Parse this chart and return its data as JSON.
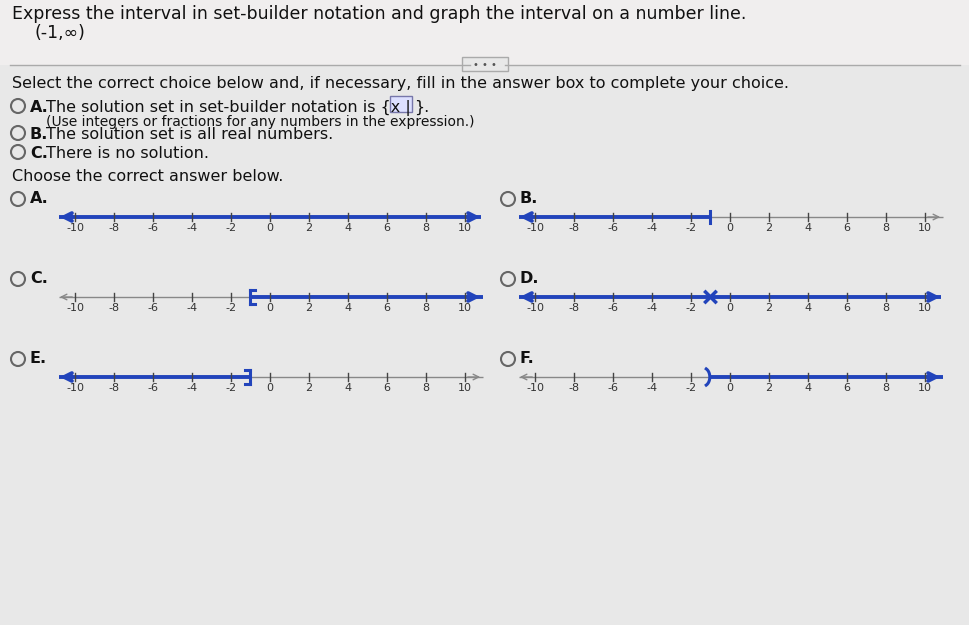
{
  "title_line1": "Express the interval in set-builder notation and graph the interval on a number line.",
  "title_line2": "(-1,∞)",
  "bg_color": "#e8e8e8",
  "white_bg": "#f0f0f0",
  "text_color": "#111111",
  "blue_color": "#2244bb",
  "gray_line": "#888888",
  "select_text": "Select the correct choice below and, if necessary, fill in the answer box to complete your choice.",
  "optA_subtext": "(Use integers or fractions for any numbers in the expression.)",
  "choose_text": "Choose the correct answer below.",
  "number_line_ticks": [
    -10,
    -8,
    -6,
    -4,
    -2,
    0,
    2,
    4,
    6,
    8,
    10
  ],
  "bracket_val": -1,
  "rows": [
    {
      "label": "A.",
      "style": "full_both",
      "col": 0
    },
    {
      "label": "B.",
      "style": "left_thick_to_neg1",
      "col": 1
    },
    {
      "label": "C.",
      "style": "open_bracket_right",
      "col": 0
    },
    {
      "label": "D.",
      "style": "full_both_x_at_neg1",
      "col": 1
    },
    {
      "label": "E.",
      "style": "left_thick_close_bracket",
      "col": 0
    },
    {
      "label": "F.",
      "style": "open_paren_right",
      "col": 1
    }
  ]
}
